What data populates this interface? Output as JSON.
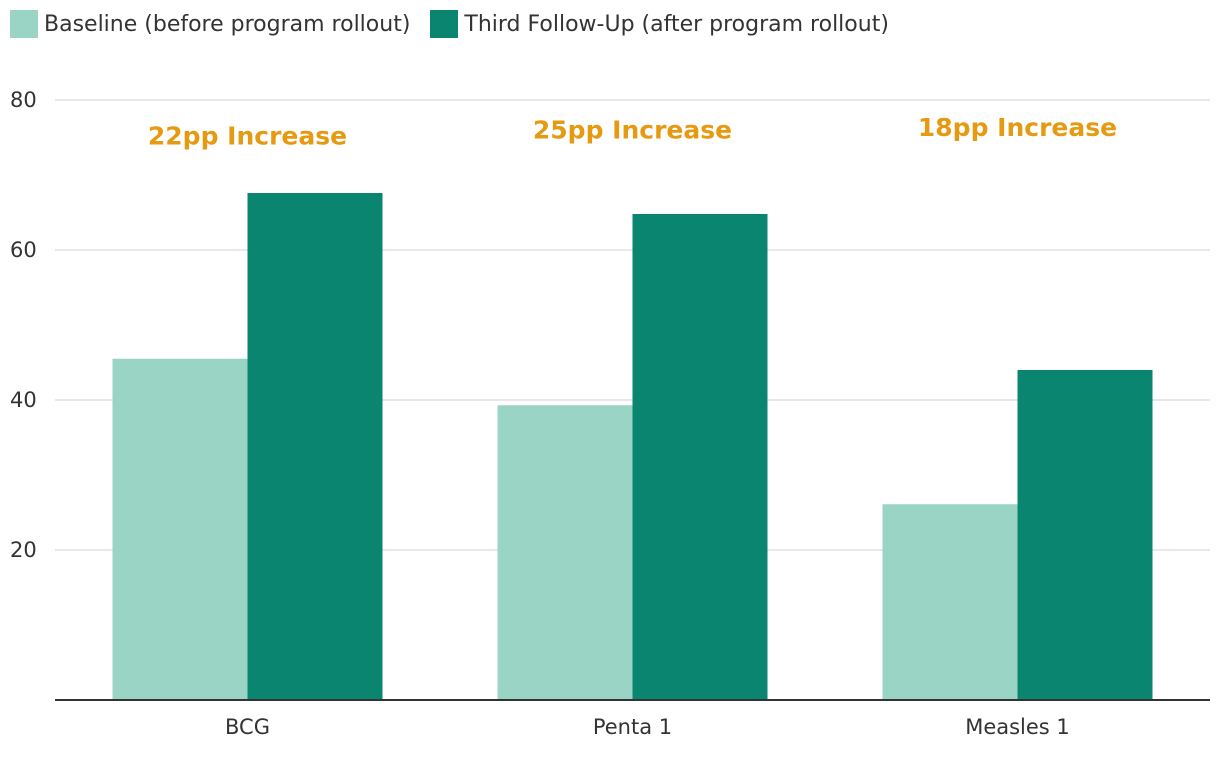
{
  "chart_data": {
    "type": "bar",
    "title": "",
    "xlabel": "",
    "ylabel": "",
    "categories": [
      "BCG",
      "Penta 1",
      "Measles 1"
    ],
    "series": [
      {
        "name": "Baseline (before program rollout)",
        "color": "#9ad4c4",
        "values": [
          45.5,
          39.3,
          26.1
        ]
      },
      {
        "name": "Third Follow-Up (after program rollout)",
        "color": "#0a8670",
        "values": [
          67.6,
          64.8,
          44
        ]
      }
    ],
    "ylim": [
      0,
      80
    ],
    "yticks": [
      20,
      40,
      60,
      80
    ],
    "grid": true,
    "legend_position": "top-left",
    "annotations": [
      {
        "category": "BCG",
        "text": "22pp Increase",
        "y": 75.3
      },
      {
        "category": "Penta 1",
        "text": "25pp Increase",
        "y": 76.1
      },
      {
        "category": "Measles 1",
        "text": "18pp Increase",
        "y": 76.4
      }
    ],
    "annotation_color": "#e69a12",
    "grid_color": "#e0e0e0",
    "axis_color": "#333333"
  }
}
